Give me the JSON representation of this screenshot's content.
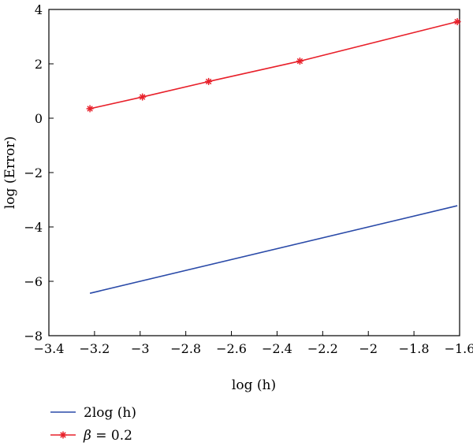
{
  "chart_data": {
    "type": "line",
    "xlabel": "log (h)",
    "ylabel": "log (Error)",
    "xlim": [
      -3.4,
      -1.6
    ],
    "ylim": [
      -8,
      4
    ],
    "xticks": [
      -3.4,
      -3.2,
      -3,
      -2.8,
      -2.6,
      -2.4,
      -2.2,
      -2,
      -1.8,
      -1.6
    ],
    "xtick_labels": [
      "−3.4",
      "−3.2",
      "−3",
      "−2.8",
      "−2.6",
      "−2.4",
      "−2.2",
      "−2",
      "−1.8",
      "−1.6"
    ],
    "yticks": [
      4,
      2,
      0,
      -2,
      -4,
      -6,
      -8
    ],
    "ytick_labels": [
      "4",
      "2",
      "0",
      "−2",
      "−4",
      "−6",
      "−8"
    ],
    "grid": false,
    "legend_position": "below",
    "series": [
      {
        "name": "2log (h)",
        "color": "#2a4aa8",
        "marker": "none",
        "x": [
          -3.22,
          -1.61
        ],
        "y": [
          -6.44,
          -3.22
        ]
      },
      {
        "name_prefix": "β",
        "name_suffix": " = 0.2",
        "color": "#e8202a",
        "marker": "star",
        "x": [
          -3.22,
          -2.99,
          -2.7,
          -2.3,
          -1.61
        ],
        "y": [
          0.35,
          0.78,
          1.35,
          2.1,
          3.55
        ]
      }
    ]
  }
}
